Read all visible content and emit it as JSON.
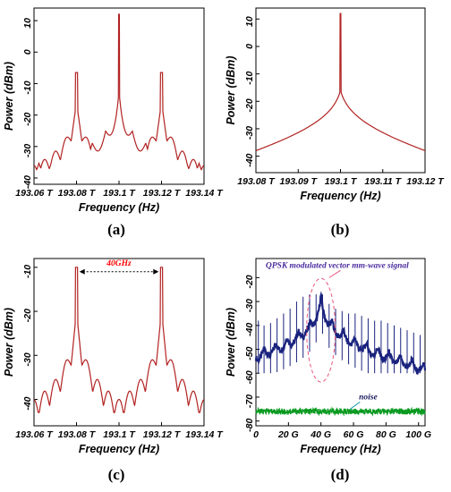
{
  "chart_data": [
    {
      "type": "line",
      "panel_label": "(a)",
      "xlabel": "Frequency (Hz)",
      "ylabel": "Power (dBm)",
      "xlim": [
        193.06,
        193.14
      ],
      "ylim": [
        -42,
        14
      ],
      "x_ticks": [
        193.06,
        193.08,
        193.1,
        193.12,
        193.14
      ],
      "x_tick_labels": [
        "193.06 T",
        "193.08 T",
        "193.1 T",
        "193.12 T",
        "193.14 T"
      ],
      "y_ticks": [
        -40,
        -30,
        -20,
        -10,
        0,
        10
      ],
      "y_tick_labels": [
        "-40",
        "-30",
        "-20",
        "-10",
        "0",
        "10"
      ],
      "grid": false,
      "line_color": "#b22222",
      "series": [
        {
          "x": [
            193.06,
            193.065,
            193.07,
            193.075,
            193.0795,
            193.08,
            193.0805,
            193.085,
            193.09,
            193.095,
            193.0995,
            193.1,
            193.1005,
            193.105,
            193.11,
            193.115,
            193.1195,
            193.12,
            193.1205,
            193.125,
            193.13,
            193.135,
            193.14
          ],
          "values": [
            -36,
            -33,
            -31,
            -26,
            -7,
            -7,
            -7,
            -24,
            -28,
            -26,
            -15,
            12,
            -15,
            -26,
            -28,
            -24,
            -7,
            -7,
            -7,
            -26,
            -31,
            -33,
            -36
          ]
        }
      ]
    },
    {
      "type": "line",
      "panel_label": "(b)",
      "xlabel": "Frequency (Hz)",
      "ylabel": "Power (dBm)",
      "xlim": [
        193.08,
        193.12
      ],
      "ylim": [
        -46,
        14
      ],
      "x_ticks": [
        193.08,
        193.09,
        193.1,
        193.11,
        193.12
      ],
      "x_tick_labels": [
        "193.08 T",
        "193.09 T",
        "193.1 T",
        "193.11 T",
        "193.12 T"
      ],
      "y_ticks": [
        -40,
        -30,
        -20,
        -10,
        0,
        10
      ],
      "y_tick_labels": [
        "-40",
        "-30",
        "-20",
        "-10",
        "0",
        "10"
      ],
      "grid": false,
      "line_color": "#b22222",
      "series": [
        {
          "x": [
            193.08,
            193.085,
            193.09,
            193.095,
            193.099,
            193.1,
            193.101,
            193.105,
            193.11,
            193.115,
            193.12
          ],
          "values": [
            -43,
            -39,
            -35,
            -28,
            -14,
            12,
            -14,
            -28,
            -35,
            -39,
            -43
          ]
        }
      ]
    },
    {
      "type": "line",
      "panel_label": "(c)",
      "xlabel": "Frequency (Hz)",
      "ylabel": "Power (dBm)",
      "xlim": [
        193.06,
        193.14
      ],
      "ylim": [
        -46,
        -8
      ],
      "x_ticks": [
        193.06,
        193.08,
        193.1,
        193.12,
        193.14
      ],
      "x_tick_labels": [
        "193.06 T",
        "193.08 T",
        "193.1 T",
        "193.12 T",
        "193.14 T"
      ],
      "y_ticks": [
        -40,
        -30,
        -20,
        -10
      ],
      "y_tick_labels": [
        "-40",
        "-30",
        "-20",
        "-10"
      ],
      "grid": false,
      "line_color": "#b22222",
      "annotations": [
        {
          "text": "40GHz",
          "x": 193.1,
          "y": -11,
          "color": "#ff0000"
        }
      ],
      "series": [
        {
          "x": [
            193.06,
            193.065,
            193.07,
            193.075,
            193.0795,
            193.08,
            193.0805,
            193.085,
            193.09,
            193.095,
            193.1,
            193.105,
            193.11,
            193.115,
            193.1195,
            193.12,
            193.1205,
            193.125,
            193.13,
            193.135,
            193.14
          ],
          "values": [
            -39,
            -37,
            -34,
            -29,
            -10,
            -10,
            -10,
            -28,
            -37,
            -40,
            -41,
            -40,
            -37,
            -28,
            -10,
            -10,
            -10,
            -29,
            -34,
            -37,
            -39
          ]
        }
      ]
    },
    {
      "type": "line",
      "panel_label": "(d)",
      "xlabel": "Frequency (Hz)",
      "ylabel": "Power (dBm)",
      "xlim": [
        0,
        104
      ],
      "ylim": [
        -82,
        -12
      ],
      "x_ticks": [
        0,
        20,
        40,
        60,
        80,
        100
      ],
      "x_tick_labels": [
        "0",
        "20 G",
        "40 G",
        "60 G",
        "80 G",
        "100 G"
      ],
      "y_ticks": [
        -80,
        -70,
        -60,
        -50,
        -40,
        -30,
        -20
      ],
      "y_tick_labels": [
        "-80",
        "-70",
        "-60",
        "-50",
        "-40",
        "-30",
        "-20"
      ],
      "grid": false,
      "annotations": [
        {
          "text": "QPSK modulated vector mm-wave signal",
          "color": "#4b2c9e"
        },
        {
          "text": "noise",
          "color": "#1a1a5e"
        }
      ],
      "series": [
        {
          "color": "#1a237e",
          "x": [
            0,
            10,
            20,
            30,
            35,
            40,
            45,
            50,
            60,
            70,
            80,
            90,
            100,
            104
          ],
          "values": [
            -56,
            -55,
            -52,
            -46,
            -36,
            -27,
            -36,
            -43,
            -49,
            -52,
            -55,
            -58,
            -60,
            -61
          ]
        },
        {
          "color": "#1a237e",
          "x": [
            1.5,
            5,
            9,
            13,
            17,
            21,
            25,
            29,
            33,
            37,
            41,
            45,
            49,
            53,
            57,
            61,
            65,
            69,
            73,
            77,
            81,
            85,
            89,
            93,
            97,
            101
          ],
          "values": [
            -38,
            -40,
            -39,
            -37,
            -35,
            -33,
            -30,
            -28,
            -27,
            -27,
            -27,
            -31,
            -33,
            -34,
            -35,
            -35,
            -36,
            -37,
            -38,
            -38,
            -39,
            -40,
            -41,
            -42,
            -43,
            -44
          ]
        },
        {
          "color": "#0a9a20",
          "x": [
            0,
            104
          ],
          "values": [
            -76,
            -76
          ]
        }
      ]
    }
  ]
}
